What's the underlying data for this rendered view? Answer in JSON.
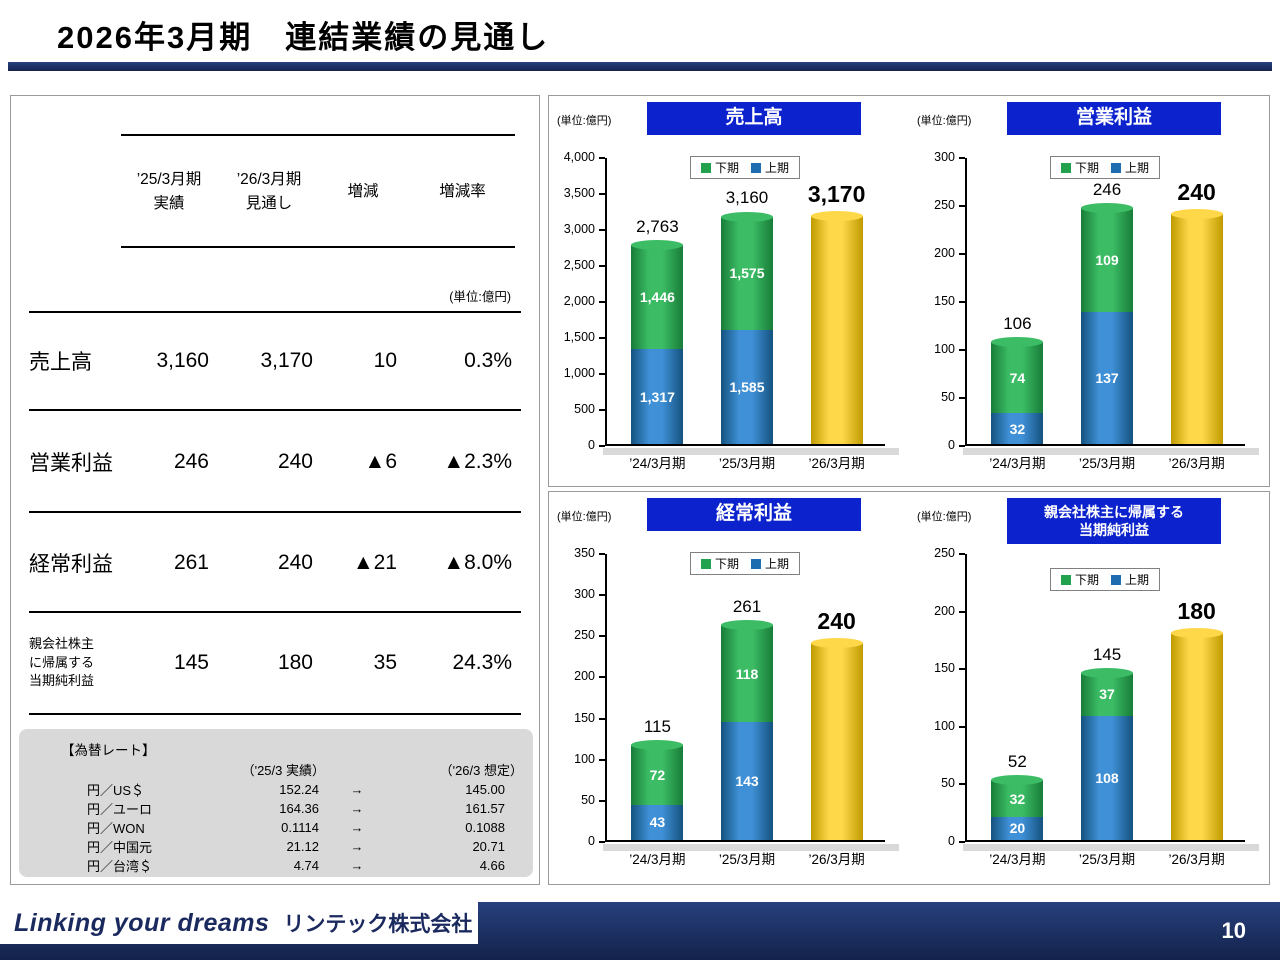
{
  "page": {
    "title": "2026年3月期　連結業績の見通し",
    "page_number": "10",
    "footer": {
      "logo_text": "Linking your dreams",
      "company_name": "リンテック株式会社"
    }
  },
  "colors": {
    "navy": "#1b2a5e",
    "banner_blue": "#0b22cc",
    "fx_box_bg": "#d9d9d9",
    "blue": {
      "main": "#1e6cb0",
      "light": "#3f90d6",
      "dark": "#14527f"
    },
    "green": {
      "main": "#22a24c",
      "light": "#3cbd65",
      "dark": "#187c38"
    },
    "yellow": {
      "main": "#f0c400",
      "light": "#ffd84a",
      "dark": "#bf9b00"
    }
  },
  "summary_table": {
    "headers": {
      "actual": "’25/3月期\n実績",
      "forecast": "’26/3月期\n見通し",
      "change": "増減",
      "change_rate": "増減率"
    },
    "unit_note": "(単位:億円)",
    "rows": [
      {
        "label": "売上高",
        "actual": "3,160",
        "forecast": "3,170",
        "change": "10",
        "change_rate": "0.3%"
      },
      {
        "label": "営業利益",
        "actual": "246",
        "forecast": "240",
        "change": "▲6",
        "change_rate": "▲2.3%"
      },
      {
        "label": "経常利益",
        "actual": "261",
        "forecast": "240",
        "change": "▲21",
        "change_rate": "▲8.0%"
      },
      {
        "label": "親会社株主\nに帰属する\n当期純利益",
        "actual": "145",
        "forecast": "180",
        "change": "35",
        "change_rate": "24.3%"
      }
    ]
  },
  "fx_rates": {
    "title": "【為替レート】",
    "header_actual": "（'25/3 実績）",
    "header_forecast": "（'26/3 想定）",
    "arrow": "→",
    "rows": [
      {
        "label": "円／US＄",
        "actual": "152.24",
        "forecast": "145.00"
      },
      {
        "label": "円／ユーロ",
        "actual": "164.36",
        "forecast": "161.57"
      },
      {
        "label": "円／WON",
        "actual": "0.1114",
        "forecast": "0.1088"
      },
      {
        "label": "円／中国元",
        "actual": "21.12",
        "forecast": "20.71"
      },
      {
        "label": "円／台湾＄",
        "actual": "4.74",
        "forecast": "4.66"
      }
    ]
  },
  "chart_data": [
    {
      "type": "bar",
      "title": "売上高",
      "unit": "(単位:億円)",
      "ylim": [
        0,
        4000
      ],
      "ytick_step": 500,
      "legend": [
        {
          "label": "下期",
          "key": "second-half",
          "color": "green"
        },
        {
          "label": "上期",
          "key": "first-half",
          "color": "blue"
        }
      ],
      "bars": [
        {
          "category": "’24/3月期",
          "total": "2,763",
          "emphasis": false,
          "segments": [
            {
              "key": "first-half",
              "series": "上期",
              "value": 1317,
              "label": "1,317",
              "color": "blue"
            },
            {
              "key": "second-half",
              "series": "下期",
              "value": 1446,
              "label": "1,446",
              "color": "green"
            }
          ]
        },
        {
          "category": "’25/3月期",
          "total": "3,160",
          "emphasis": false,
          "segments": [
            {
              "key": "first-half",
              "series": "上期",
              "value": 1585,
              "label": "1,585",
              "color": "blue"
            },
            {
              "key": "second-half",
              "series": "下期",
              "value": 1575,
              "label": "1,575",
              "color": "green"
            }
          ]
        },
        {
          "category": "’26/3月期",
          "total": "3,170",
          "emphasis": true,
          "segments": [
            {
              "key": "forecast",
              "series": "見通し",
              "value": 3170,
              "color": "yellow"
            }
          ]
        }
      ]
    },
    {
      "type": "bar",
      "title": "営業利益",
      "unit": "(単位:億円)",
      "ylim": [
        0,
        300
      ],
      "ytick_step": 50,
      "legend": [
        {
          "label": "下期",
          "key": "second-half",
          "color": "green"
        },
        {
          "label": "上期",
          "key": "first-half",
          "color": "blue"
        }
      ],
      "bars": [
        {
          "category": "’24/3月期",
          "total": "106",
          "emphasis": false,
          "segments": [
            {
              "key": "first-half",
              "series": "上期",
              "value": 32,
              "label": "32",
              "color": "blue"
            },
            {
              "key": "second-half",
              "series": "下期",
              "value": 74,
              "label": "74",
              "color": "green"
            }
          ]
        },
        {
          "category": "’25/3月期",
          "total": "246",
          "emphasis": false,
          "segments": [
            {
              "key": "first-half",
              "series": "上期",
              "value": 137,
              "label": "137",
              "color": "blue"
            },
            {
              "key": "second-half",
              "series": "下期",
              "value": 109,
              "label": "109",
              "color": "green"
            }
          ]
        },
        {
          "category": "’26/3月期",
          "total": "240",
          "emphasis": true,
          "segments": [
            {
              "key": "forecast",
              "series": "見通し",
              "value": 240,
              "color": "yellow"
            }
          ]
        }
      ]
    },
    {
      "type": "bar",
      "title": "経常利益",
      "unit": "(単位:億円)",
      "ylim": [
        0,
        350
      ],
      "ytick_step": 50,
      "legend": [
        {
          "label": "下期",
          "key": "second-half",
          "color": "green"
        },
        {
          "label": "上期",
          "key": "first-half",
          "color": "blue"
        }
      ],
      "bars": [
        {
          "category": "’24/3月期",
          "total": "115",
          "emphasis": false,
          "segments": [
            {
              "key": "first-half",
              "series": "上期",
              "value": 43,
              "label": "43",
              "color": "blue"
            },
            {
              "key": "second-half",
              "series": "下期",
              "value": 72,
              "label": "72",
              "color": "green"
            }
          ]
        },
        {
          "category": "’25/3月期",
          "total": "261",
          "emphasis": false,
          "segments": [
            {
              "key": "first-half",
              "series": "上期",
              "value": 143,
              "label": "143",
              "color": "blue"
            },
            {
              "key": "second-half",
              "series": "下期",
              "value": 118,
              "label": "118",
              "color": "green"
            }
          ]
        },
        {
          "category": "’26/3月期",
          "total": "240",
          "emphasis": true,
          "segments": [
            {
              "key": "forecast",
              "series": "見通し",
              "value": 240,
              "color": "yellow"
            }
          ]
        }
      ]
    },
    {
      "type": "bar",
      "title": "親会社株主に帰属する\n当期純利益",
      "unit": "(単位:億円)",
      "ylim": [
        0,
        250
      ],
      "ytick_step": 50,
      "legend": [
        {
          "label": "下期",
          "key": "second-half",
          "color": "green"
        },
        {
          "label": "上期",
          "key": "first-half",
          "color": "blue"
        }
      ],
      "bars": [
        {
          "category": "’24/3月期",
          "total": "52",
          "emphasis": false,
          "segments": [
            {
              "key": "first-half",
              "series": "上期",
              "value": 20,
              "label": "20",
              "color": "blue"
            },
            {
              "key": "second-half",
              "series": "下期",
              "value": 32,
              "label": "32",
              "color": "green"
            }
          ]
        },
        {
          "category": "’25/3月期",
          "total": "145",
          "emphasis": false,
          "segments": [
            {
              "key": "first-half",
              "series": "上期",
              "value": 108,
              "label": "108",
              "color": "blue"
            },
            {
              "key": "second-half",
              "series": "下期",
              "value": 37,
              "label": "37",
              "color": "green"
            }
          ]
        },
        {
          "category": "’26/3月期",
          "total": "180",
          "emphasis": true,
          "segments": [
            {
              "key": "forecast",
              "series": "見通し",
              "value": 180,
              "color": "yellow"
            }
          ]
        }
      ]
    }
  ]
}
